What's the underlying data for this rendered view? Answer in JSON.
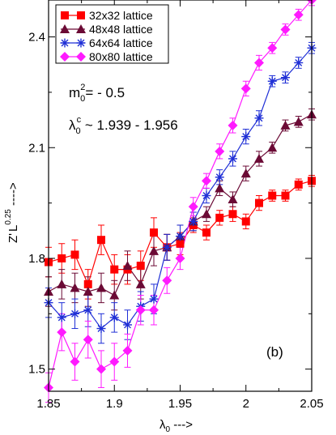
{
  "chart_data": {
    "type": "line",
    "xlim": [
      1.85,
      2.05
    ],
    "ylim": [
      1.44,
      2.5
    ],
    "x_ticks": [
      1.85,
      1.9,
      1.95,
      2.0,
      2.05
    ],
    "x_tick_labels": [
      "1.85",
      "1.9",
      "1.95",
      "2",
      "2.05"
    ],
    "y_ticks": [
      1.5,
      1.8,
      2.1,
      2.4
    ],
    "y_tick_labels": [
      "1.5",
      "1.8",
      "2.1",
      "2.4"
    ],
    "xlabel": {
      "base": "λ",
      "sub": "0",
      "arrow": " --->"
    },
    "ylabel": {
      "base": "Z",
      "prime": "'",
      "L": "L",
      "sup": "0.25",
      "arrow": " ---->"
    },
    "annotations": {
      "panel": "(b)",
      "mass": {
        "m": "m",
        "sub": "0",
        "sup": "2",
        "rest": "= - 0.5"
      },
      "lambda": {
        "l": "λ",
        "sub": "0",
        "sup": "c",
        "rest": " ~ 1.939 - 1.956"
      }
    },
    "legend_position": "top-left",
    "series": [
      {
        "name": "32x32 lattice",
        "color": "#ff0000",
        "marker": "square",
        "x": [
          1.85,
          1.86,
          1.87,
          1.88,
          1.89,
          1.9,
          1.91,
          1.92,
          1.93,
          1.94,
          1.95,
          1.96,
          1.97,
          1.98,
          1.99,
          2.0,
          2.01,
          2.02,
          2.03,
          2.04,
          2.05
        ],
        "y": [
          1.79,
          1.8,
          1.81,
          1.73,
          1.85,
          1.77,
          1.77,
          1.78,
          1.87,
          1.83,
          1.84,
          1.89,
          1.87,
          1.91,
          1.92,
          1.9,
          1.95,
          1.97,
          1.97,
          2.0,
          2.01
        ],
        "err": [
          0.04,
          0.04,
          0.04,
          0.04,
          0.04,
          0.04,
          0.04,
          0.04,
          0.04,
          0.035,
          0.03,
          0.02,
          0.02,
          0.02,
          0.02,
          0.02,
          0.02,
          0.015,
          0.015,
          0.015,
          0.015
        ]
      },
      {
        "name": "48x48 lattice",
        "color": "#6b0a35",
        "marker": "triangle",
        "x": [
          1.85,
          1.86,
          1.87,
          1.88,
          1.89,
          1.9,
          1.91,
          1.92,
          1.93,
          1.94,
          1.95,
          1.96,
          1.97,
          1.98,
          1.99,
          2.0,
          2.01,
          2.02,
          2.03,
          2.04,
          2.05
        ],
        "y": [
          1.71,
          1.73,
          1.72,
          1.71,
          1.72,
          1.7,
          1.78,
          1.73,
          1.82,
          1.83,
          1.86,
          1.9,
          1.92,
          1.99,
          1.96,
          2.03,
          2.07,
          2.1,
          2.16,
          2.17,
          2.19
        ],
        "err": [
          0.04,
          0.04,
          0.04,
          0.04,
          0.04,
          0.04,
          0.04,
          0.04,
          0.04,
          0.035,
          0.03,
          0.025,
          0.02,
          0.02,
          0.02,
          0.02,
          0.02,
          0.015,
          0.015,
          0.015,
          0.015
        ]
      },
      {
        "name": "64x64 lattice",
        "color": "#1f2fd6",
        "marker": "asterisk",
        "x": [
          1.85,
          1.86,
          1.87,
          1.88,
          1.89,
          1.9,
          1.91,
          1.92,
          1.93,
          1.94,
          1.95,
          1.96,
          1.97,
          1.98,
          1.99,
          2.0,
          2.01,
          2.02,
          2.03,
          2.04,
          2.05
        ],
        "y": [
          1.68,
          1.64,
          1.65,
          1.66,
          1.61,
          1.64,
          1.62,
          1.67,
          1.69,
          1.83,
          1.86,
          1.9,
          1.97,
          2.02,
          2.07,
          2.13,
          2.18,
          2.28,
          2.29,
          2.33,
          2.37
        ],
        "err": [
          0.04,
          0.04,
          0.04,
          0.045,
          0.04,
          0.04,
          0.04,
          0.04,
          0.04,
          0.035,
          0.03,
          0.025,
          0.02,
          0.02,
          0.02,
          0.02,
          0.02,
          0.015,
          0.015,
          0.015,
          0.015
        ]
      },
      {
        "name": "80x80 lattice",
        "color": "#ff1aff",
        "marker": "diamond",
        "x": [
          1.85,
          1.86,
          1.87,
          1.88,
          1.89,
          1.9,
          1.91,
          1.92,
          1.93,
          1.94,
          1.95,
          1.96,
          1.97,
          1.98,
          1.99,
          2.0,
          2.01,
          2.02,
          2.03,
          2.04,
          2.05
        ],
        "y": [
          1.45,
          1.6,
          1.52,
          1.58,
          1.5,
          1.52,
          1.55,
          1.66,
          1.66,
          1.74,
          1.8,
          1.94,
          2.01,
          2.09,
          2.16,
          2.26,
          2.33,
          2.37,
          2.42,
          2.46,
          2.5
        ],
        "err": [
          0.04,
          0.05,
          0.05,
          0.05,
          0.05,
          0.05,
          0.045,
          0.04,
          0.04,
          0.035,
          0.03,
          0.025,
          0.02,
          0.02,
          0.02,
          0.02,
          0.02,
          0.015,
          0.015,
          0.015,
          0.015
        ]
      }
    ]
  }
}
